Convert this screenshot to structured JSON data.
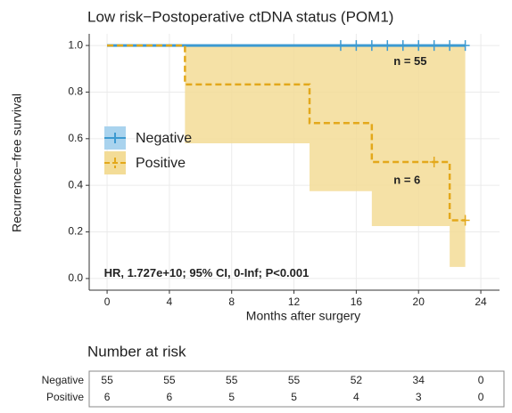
{
  "chart_data": {
    "type": "km",
    "title": "Low risk−Postoperative ctDNA status (POM1)",
    "x_label": "Months after surgery",
    "y_label": "Recurrence−free survival",
    "xlim": [
      -1.15,
      25.2
    ],
    "ylim": [
      -0.05,
      1.05
    ],
    "xticks": [
      0,
      4,
      8,
      12,
      16,
      20,
      24
    ],
    "yticks": [
      {
        "value": 0,
        "label": "0.0"
      },
      {
        "value": 0.2,
        "label": "0.2"
      },
      {
        "value": 0.4,
        "label": "0.4"
      },
      {
        "value": 0.6,
        "label": "0.6"
      },
      {
        "value": 0.8,
        "label": "0.8"
      },
      {
        "value": 1,
        "label": "1.0"
      }
    ],
    "grid": true,
    "legend_position": "left",
    "series": [
      {
        "name": "Negative",
        "color": "#3d9ad1",
        "band_color": "#a9d3ee",
        "dash": false,
        "x": [
          0,
          23
        ],
        "values": [
          1,
          1
        ],
        "censor_x": [
          15,
          16,
          17,
          18,
          19,
          20,
          21,
          22,
          23
        ],
        "censor_values": [
          1,
          1,
          1,
          1,
          1,
          1,
          1,
          1,
          1
        ],
        "ci_lower": [],
        "ci_upper": []
      },
      {
        "name": "Positive",
        "color": "#e3a81b",
        "band_color": "#f3dc97",
        "dash": true,
        "x": [
          0,
          5,
          13,
          17,
          22,
          23
        ],
        "values": [
          1,
          0.833,
          0.667,
          0.5,
          0.25,
          0.25
        ],
        "censor_x": [
          21,
          23
        ],
        "censor_values": [
          0.5,
          0.25
        ],
        "ci_lower": [
          null,
          0.58,
          0.375,
          0.225,
          0.05,
          0.05
        ],
        "ci_upper": [
          null,
          1,
          1,
          1,
          1,
          1
        ]
      }
    ],
    "annotations": [
      {
        "text": "n = 55",
        "x": 18.4,
        "y": 0.93
      },
      {
        "text": "n = 6",
        "x": 18.4,
        "y": 0.42
      },
      {
        "text": "HR, 1.727e+10; 95% CI, 0-Inf; P<0.001",
        "x": -0.2,
        "y": 0.02
      }
    ]
  },
  "risk_table": {
    "title": "Number at risk",
    "rows": [
      {
        "name": "Negative",
        "color": "#3d9ad1",
        "values": [
          "55",
          "55",
          "55",
          "55",
          "52",
          "34",
          "0"
        ]
      },
      {
        "name": "Positive",
        "color": "#e3a81b",
        "values": [
          "6",
          "6",
          "5",
          "5",
          "4",
          "3",
          "0"
        ]
      }
    ]
  }
}
